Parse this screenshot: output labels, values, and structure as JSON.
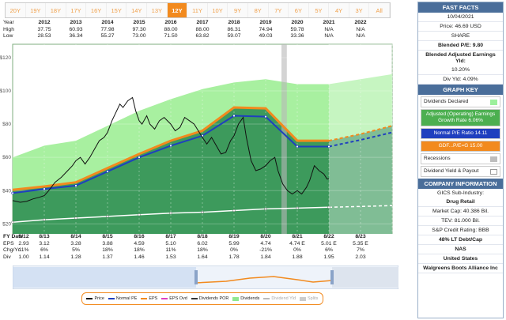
{
  "tabs": [
    "20Y",
    "19Y",
    "18Y",
    "17Y",
    "16Y",
    "15Y",
    "14Y",
    "13Y",
    "12Y",
    "11Y",
    "10Y",
    "9Y",
    "8Y",
    "7Y",
    "6Y",
    "5Y",
    "4Y",
    "3Y",
    "All"
  ],
  "active_tab": "12Y",
  "year_table": {
    "labels": [
      "Year",
      "High",
      "Low"
    ],
    "years": [
      "2012",
      "2013",
      "2014",
      "2015",
      "2016",
      "2017",
      "2018",
      "2019",
      "2020",
      "2021",
      "2022"
    ],
    "high": [
      "37.75",
      "60.93",
      "77.98",
      "97.30",
      "88.00",
      "88.00",
      "86.31",
      "74.94",
      "59.78",
      "N/A",
      "N/A"
    ],
    "low": [
      "28.53",
      "36.34",
      "55.27",
      "73.00",
      "71.50",
      "63.82",
      "59.07",
      "49.03",
      "33.36",
      "N/A",
      "N/A"
    ]
  },
  "eps_table": {
    "labels": [
      "FY Date",
      "EPS",
      "Chg/Yr",
      "Div"
    ],
    "dates": [
      "8/12",
      "8/13",
      "8/14",
      "8/15",
      "8/16",
      "8/17",
      "8/18",
      "8/19",
      "8/20",
      "8/21",
      "8/22",
      "8/23"
    ],
    "eps": [
      "2.93",
      "3.12",
      "3.28",
      "3.88",
      "4.59",
      "5.10",
      "6.02",
      "5.99",
      "4.74",
      "4.74 E",
      "5.01 E",
      "5.35 E"
    ],
    "chg": [
      "11%",
      "6%",
      "5%",
      "18%",
      "18%",
      "11%",
      "18%",
      "0%",
      "-21%",
      "0%",
      "6%",
      "7%"
    ],
    "div": [
      "1.00",
      "1.14",
      "1.28",
      "1.37",
      "1.46",
      "1.53",
      "1.64",
      "1.78",
      "1.84",
      "1.88",
      "1.95",
      "2.03"
    ]
  },
  "legend": [
    {
      "label": "Price",
      "color": "#111111",
      "style": "line"
    },
    {
      "label": "Normal PE",
      "color": "#1f3fbf",
      "style": "line"
    },
    {
      "label": "EPS",
      "color": "#f28a1e",
      "style": "line"
    },
    {
      "label": "EPS Ovd",
      "color": "#e040c0",
      "style": "line"
    },
    {
      "label": "Dividends POR",
      "color": "#333333",
      "style": "line"
    },
    {
      "label": "Dividends",
      "color": "#90e890",
      "style": "box"
    },
    {
      "label": "Dividend Yld",
      "color": "#bbbbbb",
      "style": "line"
    },
    {
      "label": "Splits",
      "color": "#cccccc",
      "style": "box"
    }
  ],
  "panel": {
    "fast_facts_title": "FAST FACTS",
    "date": "10/04/2021",
    "price": "Price: 46.69 USD",
    "share": "SHARE",
    "blended_pe": "Blended P/E: 9.80",
    "blended_yield_label": "Blended Adjusted Earnings Yld:",
    "blended_yield": "10.20%",
    "div_yld": "Div Yld: 4.09%",
    "graph_key_title": "GRAPH KEY",
    "key_dividends": "Dividends Declared",
    "key_adjusted": "Adjusted (Operating) Earnings Growth Rate 6.06%",
    "key_normal_pe": "Normal P/E Ratio 14.11",
    "key_gdf": "GDF...P/E=G 15.00",
    "key_recessions": "Recessions",
    "key_yield_payout": "Dividend Yield & Payout",
    "company_title": "COMPANY INFORMATION",
    "industry_label": "GICS Sub-Industry:",
    "industry": "Drug Retail",
    "market_cap": "Market Cap: 40.386 Bil.",
    "tev": "TEV: 81.000 Bil.",
    "credit": "S&P Credit Rating: BBB",
    "debt": "48% LT Debt/Cap",
    "exchange": "NAS",
    "country": "United States",
    "company": "Walgreens Boots Alliance Inc",
    "colors": {
      "header": "#4a6e9a",
      "adjusted": "#4caf50",
      "normal_pe": "#1f3fbf",
      "gdf": "#f28a1e"
    }
  },
  "chart_data": {
    "type": "line",
    "y_ticks": [
      "$120",
      "$100",
      "$80",
      "$60",
      "$40",
      "$20"
    ],
    "ylim": [
      14,
      128
    ],
    "xlim": [
      2011.66,
      2023.66
    ],
    "forecast_start": 2021.66,
    "recession": [
      2020.16,
      2020.33
    ],
    "series": [
      {
        "name": "EPS",
        "points": [
          [
            2011.66,
            40.5
          ],
          [
            2012.66,
            42.5
          ],
          [
            2013.66,
            45
          ],
          [
            2014.66,
            53.5
          ],
          [
            2015.66,
            62
          ],
          [
            2016.66,
            70
          ],
          [
            2017.66,
            76
          ],
          [
            2018.66,
            90
          ],
          [
            2019.66,
            89.5
          ],
          [
            2020.66,
            70
          ],
          [
            2021.66,
            70
          ],
          [
            2022.66,
            74
          ],
          [
            2023.66,
            79
          ]
        ]
      },
      {
        "name": "Normal PE",
        "points": [
          [
            2011.66,
            38.5
          ],
          [
            2012.66,
            41
          ],
          [
            2013.66,
            43
          ],
          [
            2014.66,
            51.5
          ],
          [
            2015.66,
            60
          ],
          [
            2016.66,
            67
          ],
          [
            2017.66,
            73
          ],
          [
            2018.66,
            85
          ],
          [
            2019.66,
            84.5
          ],
          [
            2020.66,
            66.5
          ],
          [
            2021.66,
            66.5
          ],
          [
            2022.66,
            70.5
          ],
          [
            2023.66,
            75
          ]
        ]
      },
      {
        "name": "Dividends",
        "points": [
          [
            2011.66,
            60
          ],
          [
            2012.66,
            67
          ],
          [
            2013.66,
            70
          ],
          [
            2014.66,
            79
          ],
          [
            2015.66,
            88
          ],
          [
            2016.66,
            95
          ],
          [
            2017.66,
            101
          ],
          [
            2018.66,
            105
          ],
          [
            2019.66,
            107
          ],
          [
            2020.66,
            104
          ],
          [
            2021.66,
            104
          ],
          [
            2022.66,
            107
          ],
          [
            2023.66,
            110
          ]
        ]
      },
      {
        "name": "Dividend Yld",
        "points": [
          [
            2011.66,
            21
          ],
          [
            2012.66,
            22.5
          ],
          [
            2013.66,
            23.5
          ],
          [
            2014.66,
            24.5
          ],
          [
            2015.66,
            25.5
          ],
          [
            2016.66,
            26.5
          ],
          [
            2017.66,
            27
          ],
          [
            2018.66,
            28
          ],
          [
            2019.66,
            29
          ],
          [
            2020.66,
            29.5
          ],
          [
            2021.66,
            30
          ],
          [
            2022.66,
            30.5
          ],
          [
            2023.66,
            31
          ]
        ]
      },
      {
        "name": "Price",
        "points": [
          [
            2011.66,
            34
          ],
          [
            2011.9,
            33
          ],
          [
            2012.1,
            33.5
          ],
          [
            2012.3,
            35
          ],
          [
            2012.5,
            36
          ],
          [
            2012.66,
            37
          ],
          [
            2012.8,
            40
          ],
          [
            2013.0,
            45
          ],
          [
            2013.2,
            48
          ],
          [
            2013.4,
            52
          ],
          [
            2013.55,
            55
          ],
          [
            2013.66,
            58
          ],
          [
            2013.8,
            60
          ],
          [
            2013.95,
            56
          ],
          [
            2014.1,
            60
          ],
          [
            2014.25,
            65
          ],
          [
            2014.4,
            70
          ],
          [
            2014.55,
            72
          ],
          [
            2014.66,
            75
          ],
          [
            2014.8,
            82
          ],
          [
            2014.95,
            88
          ],
          [
            2015.05,
            92
          ],
          [
            2015.15,
            90
          ],
          [
            2015.3,
            94
          ],
          [
            2015.45,
            96
          ],
          [
            2015.55,
            88
          ],
          [
            2015.66,
            82
          ],
          [
            2015.75,
            80
          ],
          [
            2015.9,
            85
          ],
          [
            2016.0,
            80
          ],
          [
            2016.15,
            77
          ],
          [
            2016.3,
            82
          ],
          [
            2016.45,
            84
          ],
          [
            2016.66,
            80
          ],
          [
            2016.8,
            76
          ],
          [
            2016.95,
            78
          ],
          [
            2017.1,
            84
          ],
          [
            2017.25,
            82
          ],
          [
            2017.4,
            80
          ],
          [
            2017.66,
            72
          ],
          [
            2017.8,
            68
          ],
          [
            2017.95,
            72
          ],
          [
            2018.1,
            67
          ],
          [
            2018.25,
            62
          ],
          [
            2018.4,
            63
          ],
          [
            2018.55,
            70
          ],
          [
            2018.66,
            73
          ],
          [
            2018.8,
            80
          ],
          [
            2018.95,
            84
          ],
          [
            2019.05,
            72
          ],
          [
            2019.2,
            58
          ],
          [
            2019.35,
            52
          ],
          [
            2019.5,
            53
          ],
          [
            2019.66,
            55
          ],
          [
            2019.8,
            58
          ],
          [
            2019.95,
            60
          ],
          [
            2020.05,
            52
          ],
          [
            2020.2,
            44
          ],
          [
            2020.35,
            40
          ],
          [
            2020.5,
            38
          ],
          [
            2020.66,
            40
          ],
          [
            2020.8,
            38
          ],
          [
            2020.95,
            42
          ],
          [
            2021.05,
            46
          ],
          [
            2021.2,
            55
          ],
          [
            2021.35,
            52
          ],
          [
            2021.5,
            50
          ],
          [
            2021.6,
            47
          ],
          [
            2021.66,
            47
          ]
        ]
      }
    ]
  }
}
